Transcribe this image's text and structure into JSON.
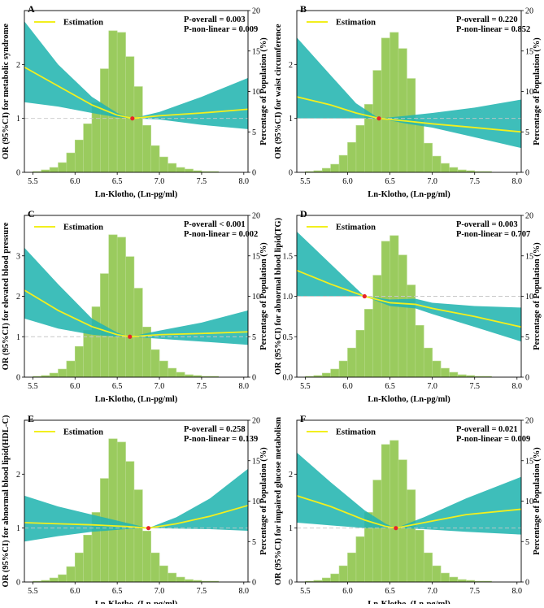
{
  "figure": {
    "colors": {
      "histogram_fill": "#9acb5e",
      "histogram_edge": "#b6d98a",
      "ci_band": "#23b5b0",
      "estimation_line": "#f2ef1e",
      "reference_point": "#e8242a",
      "reference_line": "#c7c7c7"
    }
  },
  "chart_data": [
    {
      "panel": "A",
      "type": "line",
      "legend": "Estimation",
      "p_overall": "P-overall = 0.003",
      "p_nonlinear": "P-non-linear = 0.009",
      "xlabel": "Ln-Klotho, (Ln-pg/ml)",
      "ylabel": "OR (95%CI) for metabolic syndrome",
      "y2label": "Percentage of Population (%)",
      "xlim": [
        5.4,
        8.05
      ],
      "ylim": [
        0,
        3
      ],
      "y2lim": [
        0,
        20
      ],
      "xticks": [
        "5.5",
        "6.0",
        "6.5",
        "7.0",
        "7.5",
        "8.0"
      ],
      "yticks": [
        "0",
        "1",
        "2"
      ],
      "y2ticks": [
        "0",
        "5",
        "10",
        "15",
        "20"
      ],
      "ref_x": 6.68,
      "ref_y": 1,
      "estimate": {
        "x": [
          5.4,
          5.8,
          6.2,
          6.5,
          6.68,
          7.0,
          7.5,
          8.05
        ],
        "y": [
          1.95,
          1.6,
          1.25,
          1.06,
          1.0,
          1.05,
          1.1,
          1.17
        ]
      },
      "lower": {
        "x": [
          5.4,
          5.8,
          6.2,
          6.5,
          6.68,
          7.0,
          7.5,
          8.05
        ],
        "y": [
          1.3,
          1.22,
          1.1,
          1.02,
          1.0,
          0.98,
          0.88,
          0.8
        ]
      },
      "upper": {
        "x": [
          5.4,
          5.8,
          6.2,
          6.5,
          6.68,
          7.0,
          7.5,
          8.05
        ],
        "y": [
          2.8,
          2.0,
          1.4,
          1.1,
          1.0,
          1.12,
          1.4,
          1.75
        ]
      },
      "histogram": {
        "bin_start": 5.5,
        "bin_width": 0.1,
        "percent": [
          0.1,
          0.3,
          0.6,
          1.2,
          2.4,
          4.0,
          6.0,
          8.6,
          12.8,
          17.5,
          17.3,
          14.3,
          10.6,
          5.8,
          3.3,
          1.9,
          1.1,
          0.6,
          0.4,
          0.2,
          0.1,
          0.1
        ]
      }
    },
    {
      "panel": "B",
      "type": "line",
      "legend": "Estimation",
      "p_overall": "P-overall = 0.220",
      "p_nonlinear": "P-non-linear = 0.852",
      "xlabel": "Ln-Klotho, (Ln-pg/ml)",
      "ylabel": "OR (95%CI) for waist circumference",
      "y2label": "Percentage of Population (%)",
      "xlim": [
        5.4,
        8.05
      ],
      "ylim": [
        0,
        3
      ],
      "y2lim": [
        0,
        20
      ],
      "xticks": [
        "5.5",
        "6.0",
        "6.5",
        "7.0",
        "7.5",
        "8.0"
      ],
      "yticks": [
        "0",
        "1",
        "2"
      ],
      "y2ticks": [
        "0",
        "5",
        "10",
        "15",
        "20"
      ],
      "ref_x": 6.37,
      "ref_y": 1,
      "estimate": {
        "x": [
          5.4,
          5.8,
          6.1,
          6.37,
          6.7,
          7.0,
          7.5,
          8.05
        ],
        "y": [
          1.4,
          1.25,
          1.1,
          1.0,
          0.95,
          0.9,
          0.83,
          0.75
        ]
      },
      "lower": {
        "x": [
          5.4,
          5.8,
          6.1,
          6.37,
          6.7,
          7.0,
          7.5,
          8.05
        ],
        "y": [
          1.0,
          1.0,
          1.0,
          1.0,
          0.9,
          0.83,
          0.65,
          0.45
        ]
      },
      "upper": {
        "x": [
          5.4,
          5.8,
          6.1,
          6.37,
          6.7,
          7.0,
          7.5,
          8.05
        ],
        "y": [
          2.5,
          1.8,
          1.28,
          1.0,
          1.05,
          1.1,
          1.2,
          1.35
        ]
      },
      "histogram": {
        "bin_start": 5.5,
        "bin_width": 0.1,
        "percent": [
          0.1,
          0.2,
          0.5,
          1.0,
          2.1,
          3.7,
          5.8,
          8.4,
          12.6,
          16.6,
          17.3,
          15.3,
          11.6,
          6.4,
          3.6,
          2.0,
          1.1,
          0.6,
          0.3,
          0.2,
          0.1,
          0.1
        ]
      }
    },
    {
      "panel": "C",
      "type": "line",
      "legend": "Estimation",
      "p_overall": "P-overall  < 0.001",
      "p_nonlinear": "P-non-linear = 0.002",
      "xlabel": "Ln-Klotho, (Ln-pg/ml)",
      "ylabel": "OR (95%CI) for elevated blood pressure",
      "y2label": "Percentage of Population (%)",
      "xlim": [
        5.4,
        8.05
      ],
      "ylim": [
        0,
        4
      ],
      "y2lim": [
        0,
        20
      ],
      "xticks": [
        "5.5",
        "6.0",
        "6.5",
        "7.0",
        "7.5",
        "8.0"
      ],
      "yticks": [
        "0",
        "1",
        "2",
        "3"
      ],
      "y2ticks": [
        "0",
        "5",
        "10",
        "15",
        "20"
      ],
      "ref_x": 6.65,
      "ref_y": 1,
      "estimate": {
        "x": [
          5.4,
          5.8,
          6.2,
          6.5,
          6.65,
          7.0,
          7.5,
          8.05
        ],
        "y": [
          2.15,
          1.65,
          1.25,
          1.05,
          1.0,
          1.05,
          1.08,
          1.12
        ]
      },
      "lower": {
        "x": [
          5.4,
          5.8,
          6.2,
          6.5,
          6.65,
          7.0,
          7.5,
          8.05
        ],
        "y": [
          1.45,
          1.2,
          1.05,
          1.0,
          1.0,
          0.95,
          0.88,
          0.8
        ]
      },
      "upper": {
        "x": [
          5.4,
          5.8,
          6.2,
          6.5,
          6.65,
          7.0,
          7.5,
          8.05
        ],
        "y": [
          3.2,
          2.3,
          1.45,
          1.1,
          1.0,
          1.15,
          1.35,
          1.65
        ]
      },
      "histogram": {
        "bin_start": 5.5,
        "bin_width": 0.1,
        "percent": [
          0.1,
          0.2,
          0.5,
          1.0,
          2.0,
          3.8,
          5.8,
          8.7,
          12.8,
          17.6,
          17.3,
          14.9,
          11.0,
          6.2,
          3.4,
          2.0,
          1.1,
          0.6,
          0.3,
          0.2,
          0.1,
          0.1
        ]
      }
    },
    {
      "panel": "D",
      "type": "line",
      "legend": "Estimation",
      "p_overall": "P-overall = 0.003",
      "p_nonlinear": "P-non-linear = 0.707",
      "xlabel": "Ln-Klotho, (Ln-pg/ml)",
      "ylabel": "OR (95%CI) for abnormal blood lipid(TG)",
      "y2label": "Percentage of Population (%)",
      "xlim": [
        5.4,
        8.05
      ],
      "ylim": [
        0,
        2
      ],
      "y2lim": [
        0,
        20
      ],
      "xticks": [
        "5.5",
        "6.0",
        "6.5",
        "7.0",
        "7.5",
        "8.0"
      ],
      "yticks": [
        "0.0",
        "0.5",
        "1.0",
        "1.5"
      ],
      "y2ticks": [
        "0",
        "5",
        "10",
        "15",
        "20"
      ],
      "ref_x": 6.2,
      "ref_y": 1,
      "estimate": {
        "x": [
          5.4,
          5.8,
          6.2,
          6.5,
          6.8,
          7.0,
          7.5,
          8.05
        ],
        "y": [
          1.32,
          1.15,
          1.0,
          0.92,
          0.9,
          0.85,
          0.75,
          0.62
        ]
      },
      "lower": {
        "x": [
          5.4,
          5.8,
          6.2,
          6.5,
          6.8,
          7.0,
          7.5,
          8.05
        ],
        "y": [
          1.0,
          1.0,
          1.0,
          0.88,
          0.85,
          0.78,
          0.62,
          0.44
        ]
      },
      "upper": {
        "x": [
          5.4,
          5.8,
          6.2,
          6.5,
          6.8,
          7.0,
          7.5,
          8.05
        ],
        "y": [
          1.8,
          1.4,
          1.0,
          0.96,
          0.97,
          0.92,
          0.88,
          0.86
        ]
      },
      "histogram": {
        "bin_start": 5.5,
        "bin_width": 0.1,
        "percent": [
          0.1,
          0.2,
          0.5,
          1.0,
          2.0,
          3.6,
          5.8,
          8.4,
          12.6,
          16.8,
          17.5,
          15.1,
          11.4,
          6.4,
          3.6,
          2.0,
          1.1,
          0.6,
          0.3,
          0.2,
          0.1,
          0.1
        ]
      }
    },
    {
      "panel": "E",
      "type": "line",
      "legend": "Estimation",
      "p_overall": "P-overall = 0.258",
      "p_nonlinear": "P-non-linear = 0.139",
      "xlabel": "Ln-Klotho, (Ln-pg/ml)",
      "ylabel": "OR (95%CI) for abnormal blood lipid(HDL-C)",
      "y2label": "Percentage of Population (%)",
      "xlim": [
        5.4,
        8.05
      ],
      "ylim": [
        0,
        3
      ],
      "y2lim": [
        0,
        20
      ],
      "xticks": [
        "5.5",
        "6.0",
        "6.5",
        "7.0",
        "7.5",
        "8.0"
      ],
      "yticks": [
        "0",
        "1",
        "2"
      ],
      "y2ticks": [
        "0",
        "5",
        "10",
        "15",
        "20"
      ],
      "ref_x": 6.87,
      "ref_y": 1,
      "estimate": {
        "x": [
          5.4,
          5.8,
          6.2,
          6.6,
          6.87,
          7.2,
          7.6,
          8.05
        ],
        "y": [
          1.1,
          1.08,
          1.06,
          1.03,
          1.0,
          1.08,
          1.22,
          1.42
        ]
      },
      "lower": {
        "x": [
          5.4,
          5.8,
          6.2,
          6.6,
          6.87,
          7.2,
          7.6,
          8.05
        ],
        "y": [
          0.75,
          0.85,
          0.93,
          0.98,
          1.0,
          0.99,
          0.98,
          0.95
        ]
      },
      "upper": {
        "x": [
          5.4,
          5.8,
          6.2,
          6.6,
          6.87,
          7.2,
          7.6,
          8.05
        ],
        "y": [
          1.6,
          1.4,
          1.25,
          1.1,
          1.0,
          1.2,
          1.55,
          2.1
        ]
      },
      "histogram": {
        "bin_start": 5.5,
        "bin_width": 0.1,
        "percent": [
          0.1,
          0.2,
          0.5,
          0.9,
          1.9,
          3.6,
          5.8,
          8.6,
          12.8,
          17.7,
          17.3,
          14.9,
          11.4,
          6.3,
          3.6,
          2.0,
          1.1,
          0.6,
          0.3,
          0.2,
          0.1,
          0.1
        ]
      }
    },
    {
      "panel": "F",
      "type": "line",
      "legend": "Estimation",
      "p_overall": "P-overall = 0.021",
      "p_nonlinear": "P-non-linear = 0.009",
      "xlabel": "Ln-Klotho, (Ln-pg/ml)",
      "ylabel": "OR (95%CI) for impaired glucose metabolism",
      "y2label": "Percentage of Population (%)",
      "xlim": [
        5.4,
        8.05
      ],
      "ylim": [
        0,
        3
      ],
      "y2lim": [
        0,
        20
      ],
      "xticks": [
        "5.5",
        "6.0",
        "6.5",
        "7.0",
        "7.5",
        "8.0"
      ],
      "yticks": [
        "0",
        "1",
        "2"
      ],
      "y2ticks": [
        "0",
        "5",
        "10",
        "15",
        "20"
      ],
      "ref_x": 6.57,
      "ref_y": 1,
      "estimate": {
        "x": [
          5.4,
          5.8,
          6.2,
          6.45,
          6.57,
          6.9,
          7.4,
          8.05
        ],
        "y": [
          1.6,
          1.4,
          1.15,
          1.03,
          1.0,
          1.1,
          1.25,
          1.35
        ]
      },
      "lower": {
        "x": [
          5.4,
          5.8,
          6.2,
          6.45,
          6.57,
          6.9,
          7.4,
          8.05
        ],
        "y": [
          1.1,
          1.05,
          1.0,
          1.0,
          1.0,
          0.98,
          0.93,
          0.88
        ]
      },
      "upper": {
        "x": [
          5.4,
          5.8,
          6.2,
          6.45,
          6.57,
          6.9,
          7.4,
          8.05
        ],
        "y": [
          2.4,
          1.85,
          1.33,
          1.08,
          1.0,
          1.2,
          1.55,
          1.95
        ]
      },
      "histogram": {
        "bin_start": 5.5,
        "bin_width": 0.1,
        "percent": [
          0.1,
          0.2,
          0.5,
          1.0,
          2.0,
          3.6,
          5.6,
          8.6,
          12.6,
          17.0,
          17.5,
          15.1,
          11.4,
          6.4,
          3.6,
          2.0,
          1.1,
          0.6,
          0.3,
          0.2,
          0.1,
          0.1
        ]
      }
    }
  ]
}
